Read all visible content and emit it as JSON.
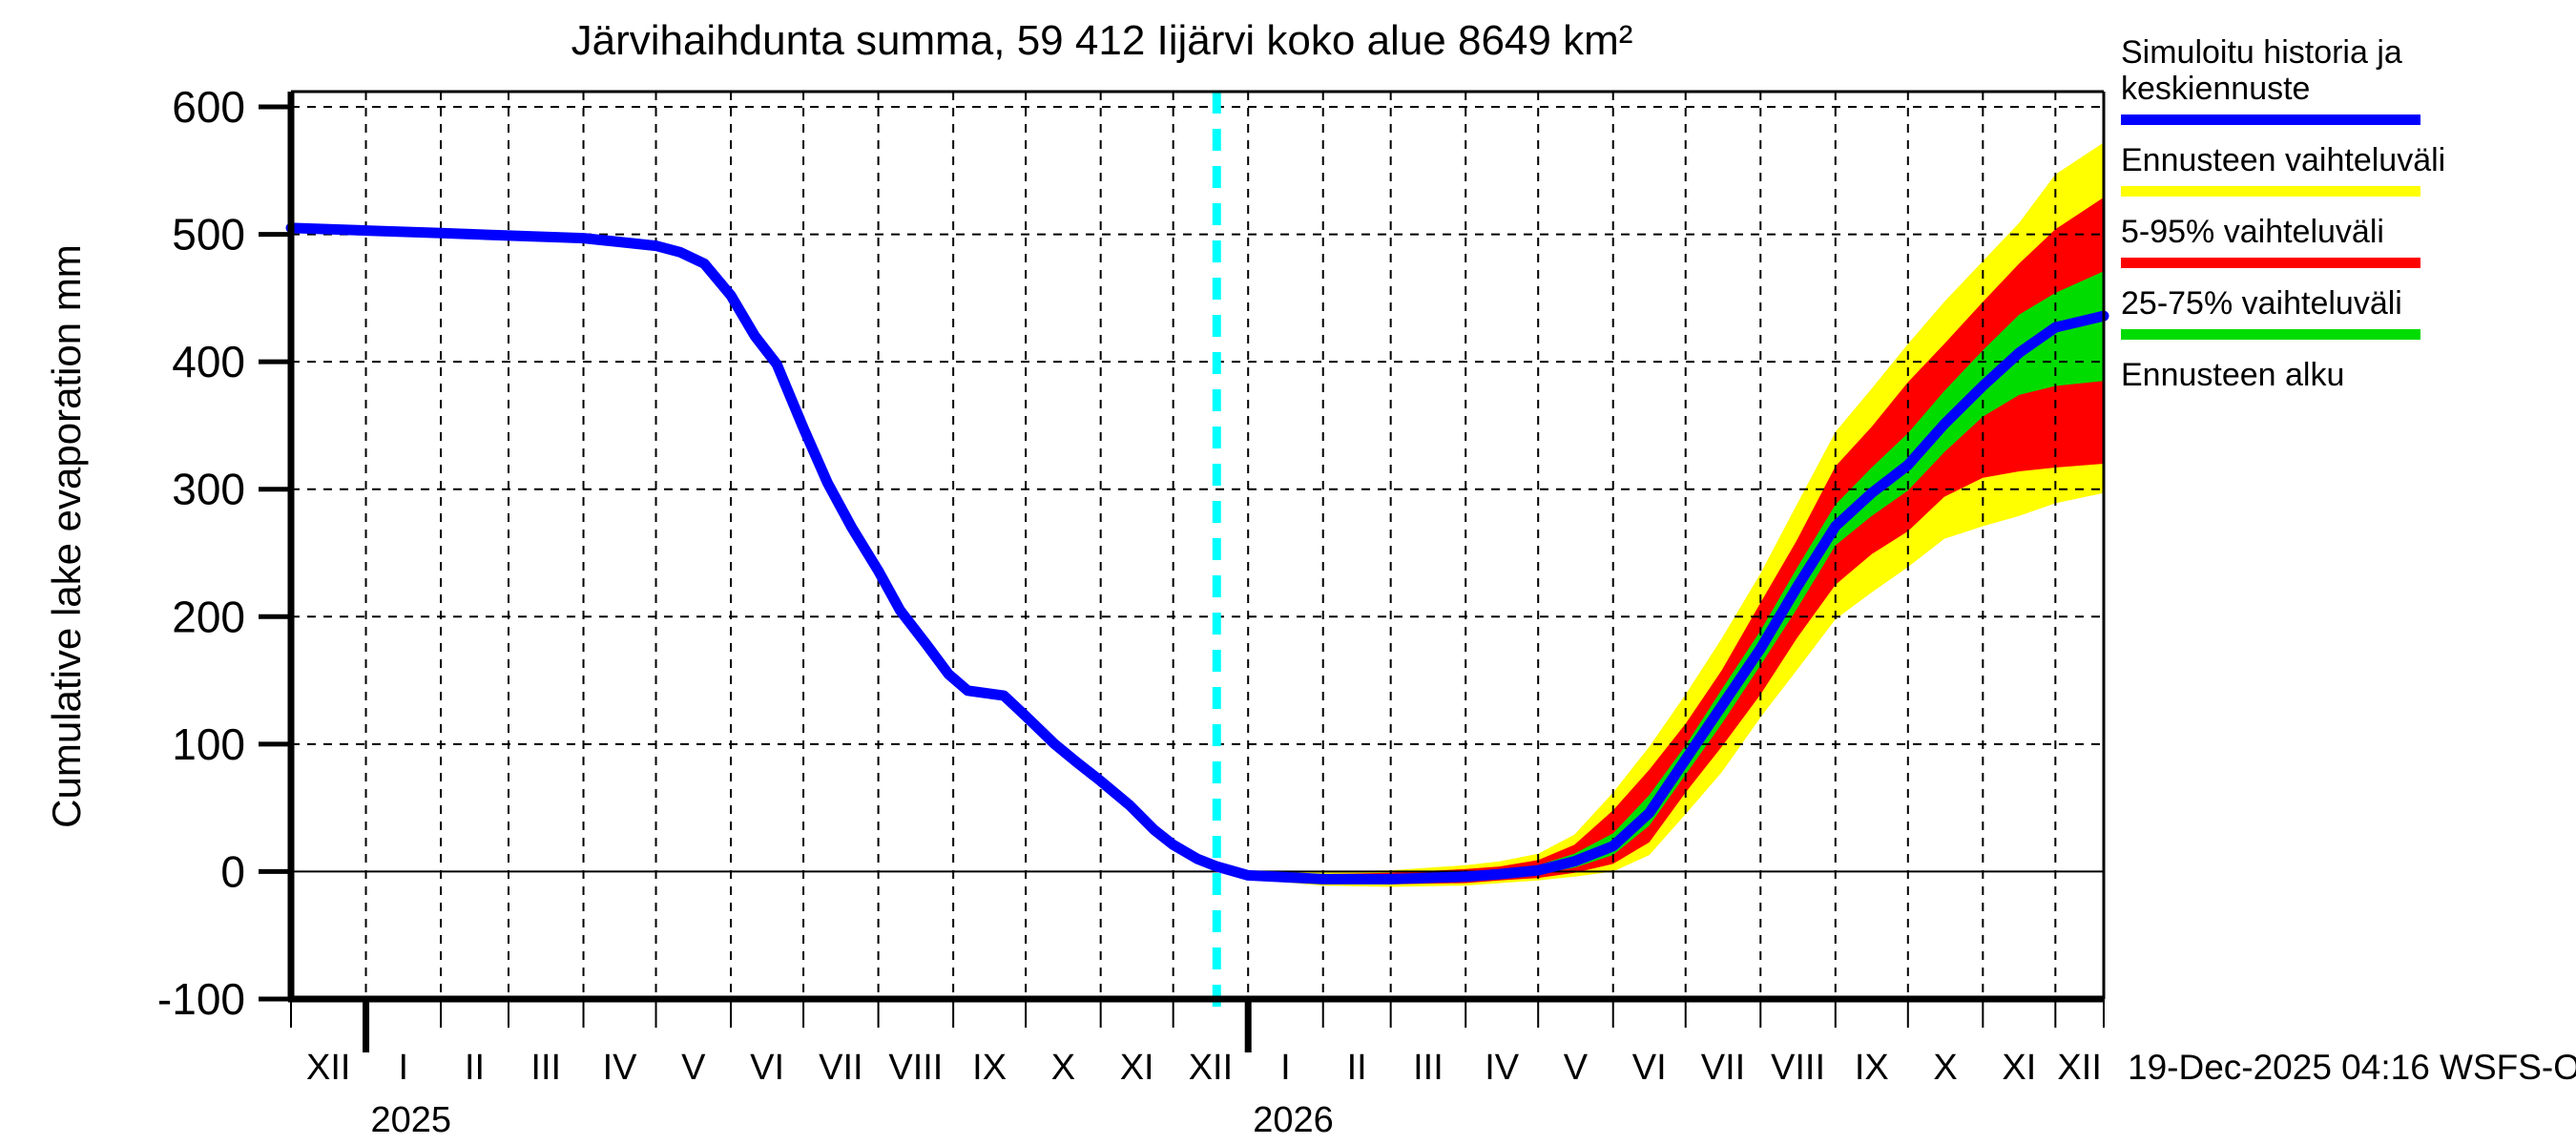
{
  "title": "Järvihaihdunta summa, 59 412 Iijärvi koko alue 8649 km²",
  "timestamp": "19-Dec-2025 04:16 WSFS-O",
  "y_axis": {
    "label": "Cumulative lake evaporation   mm",
    "ticks": [
      600,
      500,
      400,
      300,
      200,
      100,
      0,
      -100
    ]
  },
  "x_axis": {
    "month_labels": [
      "XII",
      "I",
      "II",
      "III",
      "IV",
      "V",
      "VI",
      "VII",
      "VIII",
      "IX",
      "X",
      "XI",
      "XII",
      "I",
      "II",
      "III",
      "IV",
      "V",
      "VI",
      "VII",
      "VIII",
      "IX",
      "X",
      "XI",
      "XII"
    ],
    "year_labels": [
      {
        "label": "2025",
        "slot_index": 1
      },
      {
        "label": "2026",
        "slot_index": 13
      }
    ]
  },
  "legend": [
    {
      "label": "Simuloitu historia ja keskiennuste",
      "color": "#0000ff",
      "style": "solid"
    },
    {
      "label": "Ennusteen vaihteluväli",
      "color": "#ffff00",
      "style": "solid"
    },
    {
      "label": "5-95% vaihteluväli",
      "color": "#ff0000",
      "style": "solid"
    },
    {
      "label": "25-75% vaihteluväli",
      "color": "#00dc00",
      "style": "solid"
    },
    {
      "label": "Ennusteen alku",
      "color": "#00ffff",
      "style": "dashed"
    }
  ],
  "colors": {
    "median_line": "#0000ff",
    "range_band": "#ffff00",
    "band_5_95": "#ff0000",
    "band_25_75": "#00dc00",
    "forecast_start_line": "#00ffff",
    "axis": "#000000",
    "background": "#ffffff"
  },
  "chart_data": {
    "type": "area+line",
    "title": "Järvihaihdunta summa, 59 412 Iijärvi koko alue 8649 km²",
    "ylabel": "Cumulative lake evaporation (mm)",
    "ylim": [
      -100,
      612
    ],
    "grid": "on",
    "legend_position": "outside-top-right",
    "x_unit": "days since 2024-12-01",
    "x_range_days": [
      0,
      750
    ],
    "month_boundaries_days": [
      0,
      31,
      62,
      90,
      121,
      151,
      182,
      212,
      243,
      274,
      304,
      335,
      365,
      396,
      427,
      455,
      486,
      516,
      547,
      577,
      608,
      639,
      669,
      700,
      730,
      750
    ],
    "forecast_start_day": 383,
    "forecast_start_date": "2025-12-19",
    "history": {
      "name": "Simuloitu historia ja keskiennuste",
      "points": [
        [
          0,
          505
        ],
        [
          31,
          503
        ],
        [
          62,
          501
        ],
        [
          90,
          499
        ],
        [
          121,
          497
        ],
        [
          151,
          491
        ],
        [
          161,
          486
        ],
        [
          171,
          477
        ],
        [
          182,
          452
        ],
        [
          192,
          420
        ],
        [
          201,
          398
        ],
        [
          212,
          348
        ],
        [
          222,
          305
        ],
        [
          232,
          270
        ],
        [
          243,
          236
        ],
        [
          252,
          205
        ],
        [
          263,
          178
        ],
        [
          272,
          155
        ],
        [
          280,
          142
        ],
        [
          295,
          138
        ],
        [
          304,
          122
        ],
        [
          316,
          100
        ],
        [
          325,
          86
        ],
        [
          335,
          71
        ],
        [
          347,
          52
        ],
        [
          357,
          33
        ],
        [
          365,
          21
        ],
        [
          375,
          10
        ],
        [
          383,
          4
        ]
      ]
    },
    "forecast": {
      "days": [
        383,
        396,
        427,
        455,
        486,
        500,
        516,
        531,
        547,
        562,
        577,
        592,
        608,
        623,
        639,
        654,
        669,
        684,
        700,
        715,
        730,
        750
      ],
      "median": [
        4,
        -3,
        -6,
        -6,
        -4,
        -2,
        1,
        8,
        20,
        46,
        88,
        130,
        175,
        223,
        271,
        297,
        319,
        351,
        381,
        407,
        427,
        436
      ],
      "p25": [
        4,
        -4,
        -8,
        -8,
        -7,
        -5,
        -2,
        3,
        13,
        36,
        76,
        116,
        162,
        206,
        256,
        279,
        299,
        329,
        357,
        374,
        381,
        385
      ],
      "p75": [
        4,
        -1,
        -4,
        -4,
        -1,
        1,
        5,
        14,
        30,
        60,
        99,
        143,
        189,
        238,
        288,
        317,
        344,
        377,
        409,
        437,
        454,
        471
      ],
      "p5": [
        4,
        -5,
        -9,
        -10,
        -9,
        -7,
        -5,
        -1,
        6,
        23,
        62,
        98,
        139,
        183,
        225,
        249,
        267,
        294,
        309,
        314,
        317,
        320
      ],
      "p95": [
        4,
        0,
        -2,
        -1,
        2,
        4,
        9,
        21,
        48,
        80,
        116,
        158,
        211,
        260,
        318,
        349,
        384,
        414,
        447,
        477,
        504,
        529
      ],
      "min": [
        4,
        -6,
        -11,
        -12,
        -11,
        -9,
        -7,
        -4,
        0,
        13,
        45,
        78,
        121,
        158,
        198,
        219,
        239,
        261,
        271,
        279,
        289,
        297
      ],
      "max": [
        4,
        1,
        0,
        1,
        5,
        8,
        14,
        29,
        62,
        98,
        139,
        183,
        234,
        288,
        345,
        379,
        414,
        447,
        479,
        509,
        547,
        572
      ]
    }
  }
}
